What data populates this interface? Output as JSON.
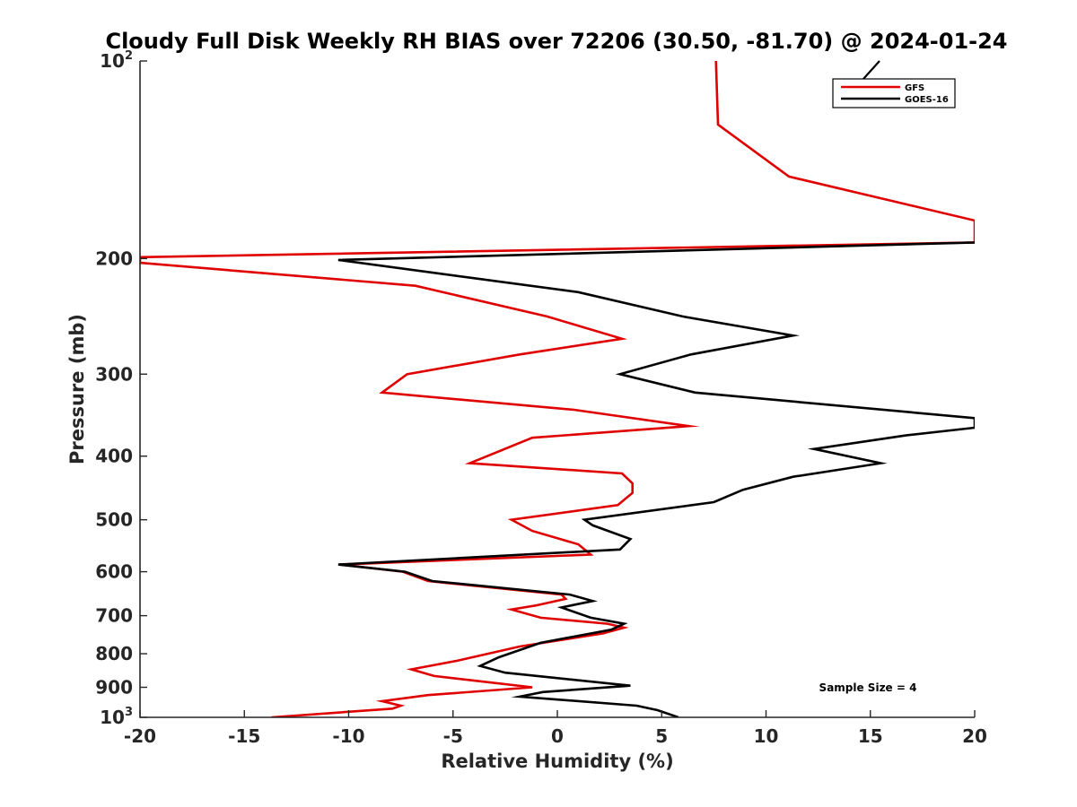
{
  "chart_data": {
    "type": "line",
    "title": "Cloudy Full Disk Weekly RH BIAS over 72206 (30.50, -81.70) @ 2024-01-24",
    "xlabel": "Relative Humidity (%)",
    "ylabel": "Pressure (mb)",
    "xlim": [
      -20,
      20
    ],
    "ylim": [
      100,
      1000
    ],
    "yscale": "log",
    "yreversed": true,
    "x_ticks": [
      "-20",
      "-15",
      "-10",
      "-5",
      "0",
      "5",
      "10",
      "15",
      "20"
    ],
    "y_ticks": [
      {
        "value": 100,
        "base": "10",
        "exp": "2",
        "label": ""
      },
      {
        "value": 200,
        "base": "",
        "exp": "",
        "label": "200"
      },
      {
        "value": 300,
        "base": "",
        "exp": "",
        "label": "300"
      },
      {
        "value": 400,
        "base": "",
        "exp": "",
        "label": "400"
      },
      {
        "value": 500,
        "base": "",
        "exp": "",
        "label": "500"
      },
      {
        "value": 600,
        "base": "",
        "exp": "",
        "label": "600"
      },
      {
        "value": 700,
        "base": "",
        "exp": "",
        "label": "700"
      },
      {
        "value": 800,
        "base": "",
        "exp": "",
        "label": "800"
      },
      {
        "value": 900,
        "base": "",
        "exp": "",
        "label": "900"
      },
      {
        "value": 1000,
        "base": "10",
        "exp": "3",
        "label": ""
      }
    ],
    "legend_position": "top-right",
    "annotation": "Sample Size = 4",
    "series": [
      {
        "name": "GFS",
        "color": "#e00000",
        "points": [
          [
            7.6,
            100
          ],
          [
            7.7,
            125
          ],
          [
            11.1,
            150
          ],
          [
            20,
            175
          ],
          [
            20,
            189
          ],
          [
            -20,
            199
          ],
          [
            -20,
            203
          ],
          [
            -6.8,
            220
          ],
          [
            -0.5,
            245
          ],
          [
            3.1,
            265
          ],
          [
            -1.8,
            280
          ],
          [
            -7.2,
            300
          ],
          [
            -8.4,
            320
          ],
          [
            0.8,
            340
          ],
          [
            6.3,
            360
          ],
          [
            -1.2,
            375
          ],
          [
            -4.2,
            410
          ],
          [
            3.1,
            425
          ],
          [
            3.6,
            440
          ],
          [
            3.6,
            455
          ],
          [
            2.9,
            475
          ],
          [
            -2.2,
            500
          ],
          [
            -1.2,
            520
          ],
          [
            1.0,
            545
          ],
          [
            1.6,
            565
          ],
          [
            -10.4,
            585
          ],
          [
            -7.4,
            600
          ],
          [
            -6.2,
            620
          ],
          [
            0.2,
            650
          ],
          [
            0.4,
            660
          ],
          [
            -1.0,
            675
          ],
          [
            -2.2,
            685
          ],
          [
            -0.8,
            705
          ],
          [
            2.4,
            720
          ],
          [
            3.2,
            730
          ],
          [
            2.2,
            745
          ],
          [
            -1.8,
            780
          ],
          [
            -4.8,
            820
          ],
          [
            -7.0,
            845
          ],
          [
            -5.9,
            865
          ],
          [
            -1.2,
            900
          ],
          [
            -6.2,
            925
          ],
          [
            -8.4,
            945
          ],
          [
            -7.5,
            960
          ],
          [
            -7.9,
            970
          ],
          [
            -13.7,
            1000
          ]
        ]
      },
      {
        "name": "GOES-16",
        "color": "#000000",
        "points": [
          [
            20,
            189
          ],
          [
            -10.5,
            201
          ],
          [
            1.0,
            225
          ],
          [
            6.0,
            245
          ],
          [
            11.3,
            262
          ],
          [
            6.4,
            280
          ],
          [
            3.0,
            300
          ],
          [
            6.6,
            320
          ],
          [
            20,
            350
          ],
          [
            20,
            362
          ],
          [
            16.7,
            372
          ],
          [
            12.3,
            390
          ],
          [
            15.5,
            410
          ],
          [
            11.3,
            430
          ],
          [
            8.9,
            450
          ],
          [
            7.5,
            470
          ],
          [
            1.3,
            500
          ],
          [
            1.7,
            510
          ],
          [
            3.5,
            535
          ],
          [
            3.0,
            555
          ],
          [
            -10.5,
            585
          ],
          [
            -7.3,
            600
          ],
          [
            -6.0,
            620
          ],
          [
            0.6,
            650
          ],
          [
            1.7,
            665
          ],
          [
            0.2,
            680
          ],
          [
            1.6,
            705
          ],
          [
            3.2,
            720
          ],
          [
            2.6,
            735
          ],
          [
            -0.8,
            770
          ],
          [
            -2.8,
            810
          ],
          [
            -3.7,
            835
          ],
          [
            -2.5,
            855
          ],
          [
            3.5,
            895
          ],
          [
            -0.7,
            915
          ],
          [
            -1.8,
            930
          ],
          [
            3.8,
            960
          ],
          [
            4.8,
            975
          ],
          [
            5.8,
            1000
          ]
        ]
      }
    ]
  }
}
